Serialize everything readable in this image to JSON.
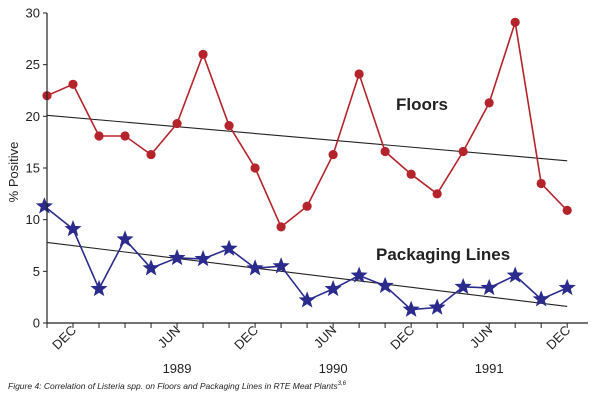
{
  "chart_data": {
    "type": "line",
    "ylabel": "% Positive",
    "ylim": [
      0,
      30
    ],
    "y_ticks": [
      0,
      5,
      10,
      15,
      20,
      25,
      30
    ],
    "x_range": [
      0,
      20.8
    ],
    "x_tick_labels": [
      {
        "label": "DEC",
        "x": 1
      },
      {
        "label": "JUN",
        "x": 5
      },
      {
        "label": "DEC",
        "x": 8
      },
      {
        "label": "JUN",
        "x": 11
      },
      {
        "label": "DEC",
        "x": 14
      },
      {
        "label": "JUN",
        "x": 17
      },
      {
        "label": "DEC",
        "x": 20
      }
    ],
    "year_labels": [
      {
        "label": "1989",
        "x": 5
      },
      {
        "label": "1990",
        "x": 11
      },
      {
        "label": "1991",
        "x": 17
      }
    ],
    "grid": false,
    "series": [
      {
        "name": "Floors",
        "color": "#b5232b",
        "marker": "circle",
        "x": [
          0,
          1,
          2,
          3,
          4,
          5,
          6,
          7,
          8,
          9,
          10,
          11,
          12,
          13,
          14,
          15,
          16,
          17,
          18,
          19,
          20
        ],
        "values": [
          22.0,
          23.1,
          18.1,
          18.1,
          16.3,
          19.3,
          26.0,
          19.1,
          15.0,
          9.3,
          11.3,
          16.3,
          24.1,
          16.6,
          14.4,
          12.5,
          16.6,
          21.3,
          29.1,
          13.5,
          10.9
        ],
        "trend": {
          "y_start": 20.1,
          "y_end": 15.7
        }
      },
      {
        "name": "Packaging Lines",
        "color": "#2a2b8c",
        "marker": "star",
        "x": [
          -0.1,
          1,
          2,
          3,
          4,
          5,
          6,
          7,
          8,
          9,
          10,
          11,
          12,
          13,
          14,
          15,
          16,
          17,
          18,
          19,
          20
        ],
        "values": [
          11.3,
          9.1,
          3.3,
          8.1,
          5.3,
          6.3,
          6.2,
          7.2,
          5.3,
          5.5,
          2.2,
          3.3,
          4.6,
          3.6,
          1.3,
          1.5,
          3.5,
          3.4,
          4.6,
          2.3,
          3.4
        ],
        "trend": {
          "y_start": 7.8,
          "y_end": 1.6
        }
      }
    ],
    "annotations": [
      "Floors",
      "Packaging Lines"
    ]
  },
  "caption": {
    "text": "Figure 4: Correlation of Listeria spp. on Floors and Packaging Lines in RTE Meat Plants",
    "superscript": "3,6"
  }
}
